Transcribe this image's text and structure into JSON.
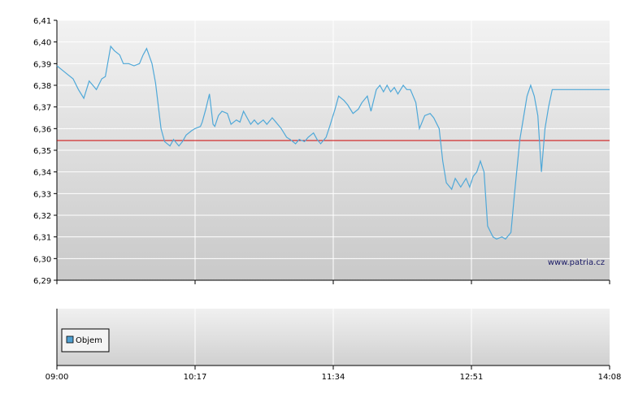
{
  "watermark": "www.patria.cz",
  "chart_data": [
    {
      "type": "line",
      "ylim": [
        6.29,
        6.41
      ],
      "yticks": [
        "6,29",
        "6,30",
        "6,31",
        "6,32",
        "6,33",
        "6,34",
        "6,35",
        "6,36",
        "6,37",
        "6,38",
        "6,39",
        "6,40",
        "6,41"
      ],
      "xticks": [
        "09:00",
        "10:17",
        "11:34",
        "12:51",
        "14:08"
      ],
      "xlim_minutes": [
        0,
        308
      ],
      "reference_line": {
        "value": 6.3545,
        "color": "#cc0000"
      },
      "line_color": "#4fa8d8",
      "grid": true,
      "series": [
        {
          "x": [
            0,
            3,
            6,
            9,
            12,
            15,
            18,
            20,
            22,
            25,
            27,
            30,
            32,
            35,
            37,
            40,
            43,
            46,
            48,
            50,
            53,
            55,
            58,
            60,
            63,
            65,
            68,
            70,
            72,
            75,
            77,
            80,
            81,
            83,
            85,
            87,
            88,
            90,
            92,
            95,
            97,
            100,
            102,
            104,
            106,
            108,
            110,
            112,
            115,
            117,
            120,
            122,
            125,
            128,
            130,
            133,
            135,
            138,
            140,
            143,
            145,
            147,
            150,
            152,
            155,
            157,
            160,
            162,
            165,
            168,
            170,
            173,
            175,
            178,
            180,
            182,
            184,
            186,
            188,
            190,
            193,
            195,
            197,
            200,
            202,
            205,
            208,
            210,
            213,
            215,
            217,
            220,
            222,
            225,
            228,
            230,
            232,
            234,
            236,
            238,
            240,
            243,
            245,
            248,
            250,
            253,
            255,
            258,
            260,
            262,
            264,
            266,
            268,
            270,
            272,
            274,
            276,
            278,
            280,
            282,
            284,
            286,
            288,
            290,
            292,
            294,
            296,
            298,
            300,
            302,
            304,
            306,
            308
          ],
          "y": [
            6.389,
            6.387,
            6.385,
            6.383,
            6.378,
            6.374,
            6.382,
            6.38,
            6.378,
            6.383,
            6.384,
            6.398,
            6.396,
            6.394,
            6.39,
            6.39,
            6.389,
            6.39,
            6.394,
            6.397,
            6.39,
            6.381,
            6.36,
            6.354,
            6.352,
            6.355,
            6.352,
            6.354,
            6.357,
            6.359,
            6.36,
            6.361,
            6.363,
            6.369,
            6.376,
            6.362,
            6.361,
            6.366,
            6.368,
            6.367,
            6.362,
            6.364,
            6.363,
            6.368,
            6.365,
            6.362,
            6.364,
            6.362,
            6.364,
            6.362,
            6.365,
            6.363,
            6.36,
            6.356,
            6.355,
            6.353,
            6.355,
            6.354,
            6.356,
            6.358,
            6.355,
            6.353,
            6.356,
            6.361,
            6.369,
            6.375,
            6.373,
            6.371,
            6.367,
            6.369,
            6.372,
            6.375,
            6.368,
            6.378,
            6.38,
            6.377,
            6.38,
            6.377,
            6.379,
            6.376,
            6.38,
            6.378,
            6.378,
            6.372,
            6.36,
            6.366,
            6.367,
            6.365,
            6.36,
            6.345,
            6.335,
            6.332,
            6.337,
            6.333,
            6.337,
            6.333,
            6.338,
            6.34,
            6.345,
            6.34,
            6.315,
            6.31,
            6.309,
            6.31,
            6.309,
            6.312,
            6.33,
            6.355,
            6.365,
            6.375,
            6.38,
            6.375,
            6.366,
            6.34,
            6.36,
            6.37,
            6.378,
            6.378,
            6.378,
            6.378,
            6.378,
            6.378,
            6.378,
            6.378,
            6.378,
            6.378,
            6.378,
            6.378,
            6.378,
            6.378,
            6.378,
            6.378,
            6.378
          ]
        }
      ]
    },
    {
      "type": "bar",
      "legend": [
        "Objem"
      ],
      "legend_color": "#4f9fd0",
      "xticks": [
        "09:00",
        "10:17",
        "11:34",
        "12:51",
        "14:08"
      ]
    }
  ]
}
